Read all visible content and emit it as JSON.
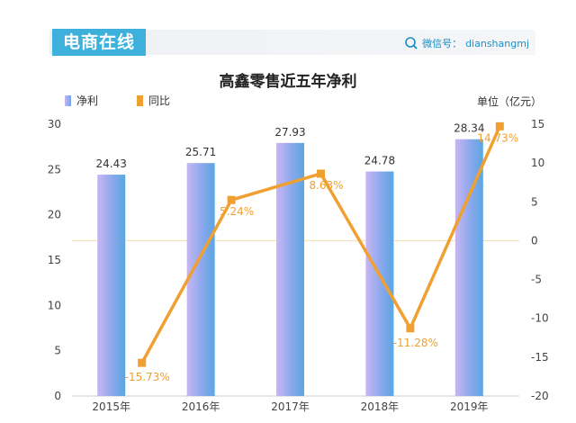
{
  "header": {
    "banner_label": "电商在线",
    "wechat_prefix": "微信号：",
    "wechat_id": "dianshangmj",
    "icon": "search-icon"
  },
  "chart_data": {
    "type": "bar+line",
    "title": "高鑫零售近五年净利",
    "categories": [
      "2015年",
      "2016年",
      "2017年",
      "2018年",
      "2019年"
    ],
    "series": [
      {
        "name": "净利",
        "type": "bar",
        "axis": "left",
        "values": [
          24.43,
          25.71,
          27.93,
          24.78,
          28.34
        ],
        "labels": [
          "24.43",
          "25.71",
          "27.93",
          "24.78",
          "28.34"
        ],
        "color": "#7fa8e8"
      },
      {
        "name": "同比",
        "type": "line",
        "axis": "right",
        "values": [
          -15.73,
          5.24,
          8.63,
          -11.28,
          14.73
        ],
        "labels": [
          "-15.73%",
          "5.24%",
          "8.63%",
          "-11.28%",
          "14.73%"
        ],
        "color": "#f0a030"
      }
    ],
    "y_left": {
      "min": 0,
      "max": 30,
      "ticks": [
        0,
        5,
        10,
        15,
        20,
        25,
        30
      ]
    },
    "y_right": {
      "min": -20,
      "max": 15,
      "ticks": [
        -20,
        -15,
        -10,
        -5,
        0,
        5,
        10,
        15
      ]
    },
    "unit_label": "单位（亿元）",
    "legend_placement": "top-left",
    "grid": false
  }
}
